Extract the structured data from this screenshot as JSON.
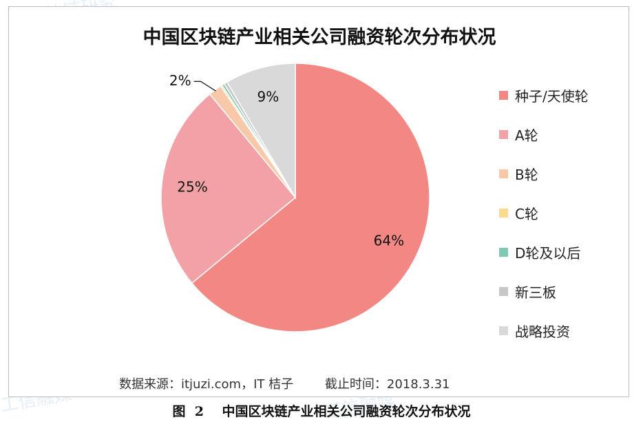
{
  "chart_data": {
    "type": "pie",
    "title": "中国区块链产业相关公司融资轮次分布状况",
    "slices": [
      {
        "label": "种子/天使轮",
        "value": 64,
        "display": "64%",
        "color": "#F28783"
      },
      {
        "label": "A轮",
        "value": 25,
        "display": "25%",
        "color": "#F2A2A6"
      },
      {
        "label": "B轮",
        "value": 1.6,
        "display": "2%",
        "color": "#F8C9A8"
      },
      {
        "label": "C轮",
        "value": 0.2,
        "display": "",
        "color": "#FBD98E"
      },
      {
        "label": "D轮及以后",
        "value": 0.3,
        "display": "",
        "color": "#7FC9B4"
      },
      {
        "label": "新三板",
        "value": 0.4,
        "display": "",
        "color": "#C7C7C7"
      },
      {
        "label": "战略投资",
        "value": 8.5,
        "display": "9%",
        "color": "#D9D9D9"
      }
    ],
    "legend_position": "right"
  },
  "source_note": "数据来源：itjuzi.com，IT 桔子        截止时间：2018.3.31",
  "figure_caption": "图  2    中国区块链产业相关公司融资轮次分布状况",
  "watermarks": [
    "区块链研究",
    "工信融媒",
    "工信融媒"
  ]
}
